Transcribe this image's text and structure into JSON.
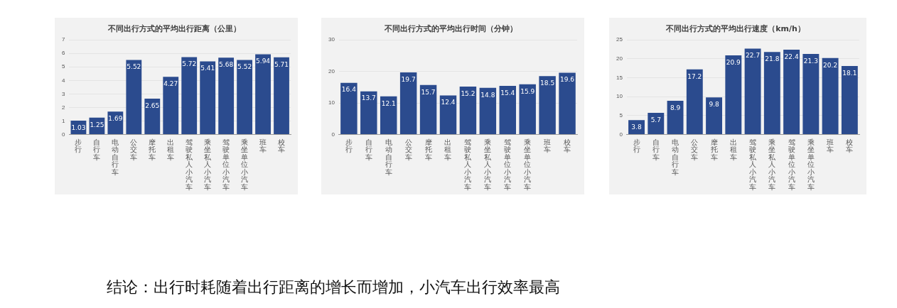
{
  "chart_data": [
    {
      "type": "bar",
      "title": "不同出行方式的平均出行距离（公里）",
      "categories": [
        "步行",
        "自行车",
        "电动自行车",
        "公交车",
        "摩托车",
        "出租车",
        "驾驶私人小汽车",
        "乘坐私人小汽车",
        "驾驶单位小汽车",
        "乘坐单位小汽车",
        "班车",
        "校车"
      ],
      "values": [
        1.03,
        1.25,
        1.69,
        5.52,
        2.65,
        4.27,
        5.72,
        5.41,
        5.68,
        5.52,
        5.94,
        5.71
      ],
      "color": "#2b4b8e",
      "ylim": [
        0,
        7
      ],
      "yticks": [
        0,
        1,
        2,
        3,
        4,
        5,
        6,
        7
      ],
      "grid": "y",
      "data_labels": true
    },
    {
      "type": "bar",
      "title": "不同出行方式的平均出行时间（分钟）",
      "categories": [
        "步行",
        "自行车",
        "电动自行车",
        "公交车",
        "摩托车",
        "出租车",
        "驾驶私人小汽车",
        "乘坐私人小汽车",
        "驾驶单位小汽车",
        "乘坐单位小汽车",
        "班车",
        "校车"
      ],
      "values": [
        16.4,
        13.7,
        12.1,
        19.7,
        15.7,
        12.4,
        15.2,
        14.8,
        15.4,
        15.9,
        18.5,
        19.6
      ],
      "color": "#2b4b8e",
      "ylim": [
        0,
        30
      ],
      "yticks": [
        0,
        10,
        20,
        30
      ],
      "grid": "y",
      "data_labels": true
    },
    {
      "type": "bar",
      "title": "不同出行方式的平均出行速度（km/h）",
      "categories": [
        "步行",
        "自行车",
        "电动自行车",
        "公交车",
        "摩托车",
        "出租车",
        "驾驶私人小汽车",
        "乘坐私人小汽车",
        "驾驶单位小汽车",
        "乘坐单位小汽车",
        "班车",
        "校车"
      ],
      "values": [
        3.8,
        5.7,
        8.9,
        17.2,
        9.8,
        20.9,
        22.7,
        21.8,
        22.4,
        21.3,
        20.2,
        18.1
      ],
      "color": "#2b4b8e",
      "ylim": [
        0,
        25
      ],
      "yticks": [
        0,
        5,
        10,
        15,
        20,
        25
      ],
      "grid": "y",
      "data_labels": true
    },
    {
      "type": "other",
      "annotations": [
        "结论：出行时耗随着出行距离的增长而增加，小汽车出行效率最高"
      ]
    }
  ]
}
